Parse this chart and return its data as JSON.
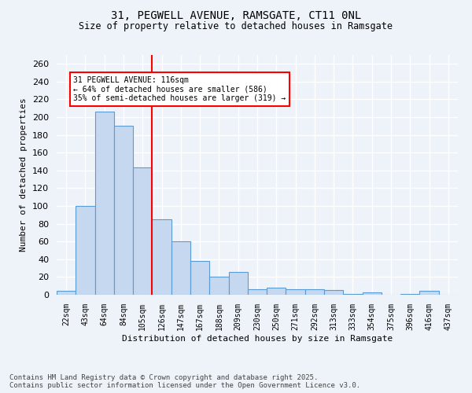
{
  "title_line1": "31, PEGWELL AVENUE, RAMSGATE, CT11 0NL",
  "title_line2": "Size of property relative to detached houses in Ramsgate",
  "xlabel": "Distribution of detached houses by size in Ramsgate",
  "ylabel": "Number of detached properties",
  "categories": [
    "22sqm",
    "43sqm",
    "64sqm",
    "84sqm",
    "105sqm",
    "126sqm",
    "147sqm",
    "167sqm",
    "188sqm",
    "209sqm",
    "230sqm",
    "250sqm",
    "271sqm",
    "292sqm",
    "313sqm",
    "333sqm",
    "354sqm",
    "375sqm",
    "396sqm",
    "416sqm",
    "437sqm"
  ],
  "values": [
    4,
    100,
    206,
    190,
    143,
    85,
    60,
    38,
    20,
    26,
    6,
    8,
    6,
    6,
    5,
    1,
    3,
    0,
    1,
    4,
    0
  ],
  "bar_color": "#c5d8f0",
  "bar_edge_color": "#5b9bd5",
  "redline_index": 4.5,
  "annotation_text_line1": "31 PEGWELL AVENUE: 116sqm",
  "annotation_text_line2": "← 64% of detached houses are smaller (586)",
  "annotation_text_line3": "35% of semi-detached houses are larger (319) →",
  "ylim": [
    0,
    270
  ],
  "yticks": [
    0,
    20,
    40,
    60,
    80,
    100,
    120,
    140,
    160,
    180,
    200,
    220,
    240,
    260
  ],
  "footer_line1": "Contains HM Land Registry data © Crown copyright and database right 2025.",
  "footer_line2": "Contains public sector information licensed under the Open Government Licence v3.0.",
  "bg_color": "#eef2f9",
  "grid_color": "#ffffff",
  "fig_bg": "#eef2f9",
  "title_fontsize": 10,
  "subtitle_fontsize": 8.5,
  "bar_fontsize": 7.5,
  "ylabel_fontsize": 8,
  "xlabel_fontsize": 8,
  "footer_fontsize": 6.5
}
